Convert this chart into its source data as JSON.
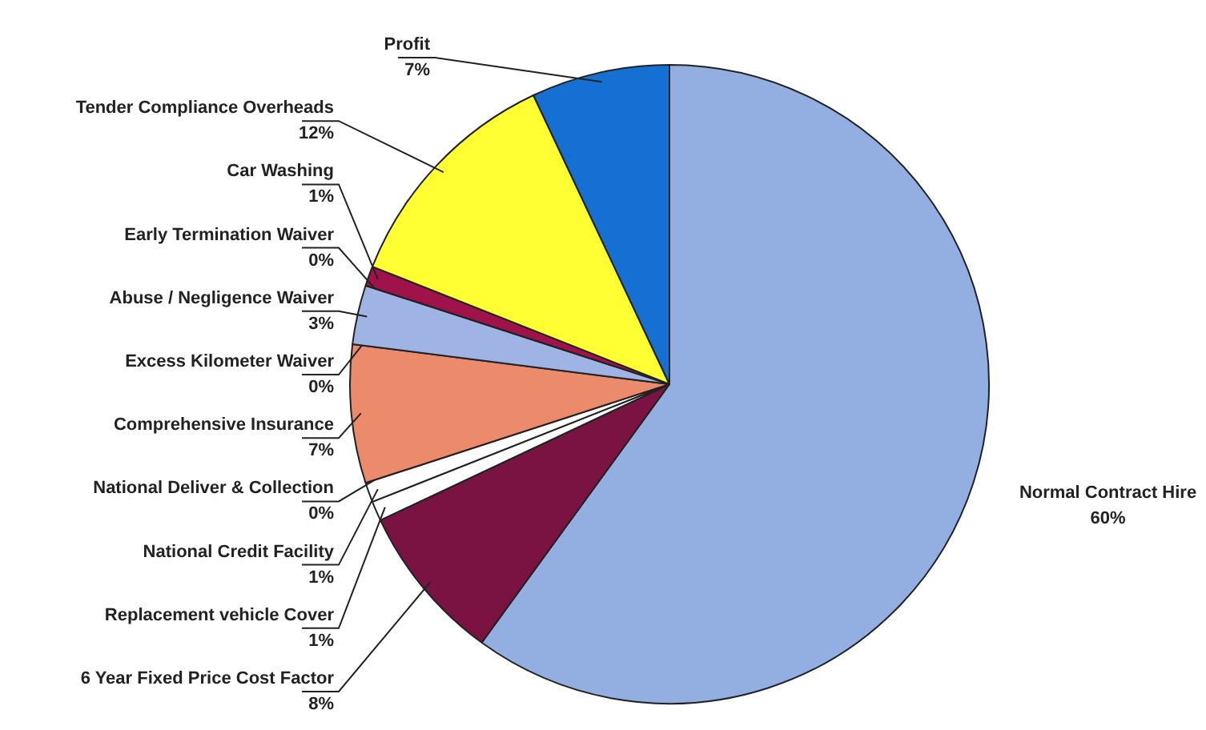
{
  "chart_data": {
    "type": "pie",
    "categories": [
      "Normal Contract Hire",
      "6 Year Fixed Price Cost Factor",
      "Replacement vehicle Cover",
      "National Credit Facility",
      "National Deliver & Collection",
      "Comprehensive Insurance",
      "Excess Kilometer Waiver",
      "Abuse / Negligence Waiver",
      "Early Termination Waiver",
      "Car Washing",
      "Tender Compliance Overheads",
      "Profit"
    ],
    "values": [
      60,
      8,
      1,
      1,
      0,
      7,
      0,
      3,
      0,
      1,
      12,
      7
    ],
    "colors": [
      "#93aee0",
      "#7a1342",
      "#ffffff",
      "#ffffff",
      "#13235e",
      "#ec8a6c",
      "#9fb4e4",
      "#9fb4e4",
      "#ffffff",
      "#a0134a",
      "#ffff33",
      "#1670d4"
    ],
    "value_labels": [
      "60%",
      "8%",
      "1%",
      "1%",
      "0%",
      "7%",
      "0%",
      "3%",
      "0%",
      "1%",
      "12%",
      "7%"
    ]
  }
}
